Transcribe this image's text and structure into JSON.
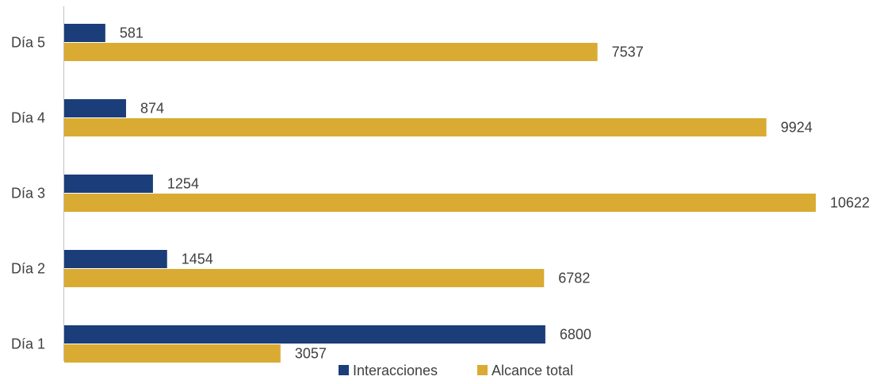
{
  "chart_data": {
    "type": "bar",
    "orientation": "horizontal",
    "categories": [
      "Día 1",
      "Día 2",
      "Día 3",
      "Día 4",
      "Día 5"
    ],
    "series": [
      {
        "name": "Interacciones",
        "color": "#1b3d7a",
        "values": [
          6800,
          1454,
          1254,
          874,
          581
        ]
      },
      {
        "name": "Alcance total",
        "color": "#d9ab33",
        "values": [
          3057,
          6782,
          10622,
          9924,
          7537
        ]
      }
    ],
    "xlim": [
      0,
      10622
    ],
    "grid": false,
    "data_labels": true,
    "legend_position": "bottom-center",
    "axis_line_color": "#bfbfbf"
  }
}
